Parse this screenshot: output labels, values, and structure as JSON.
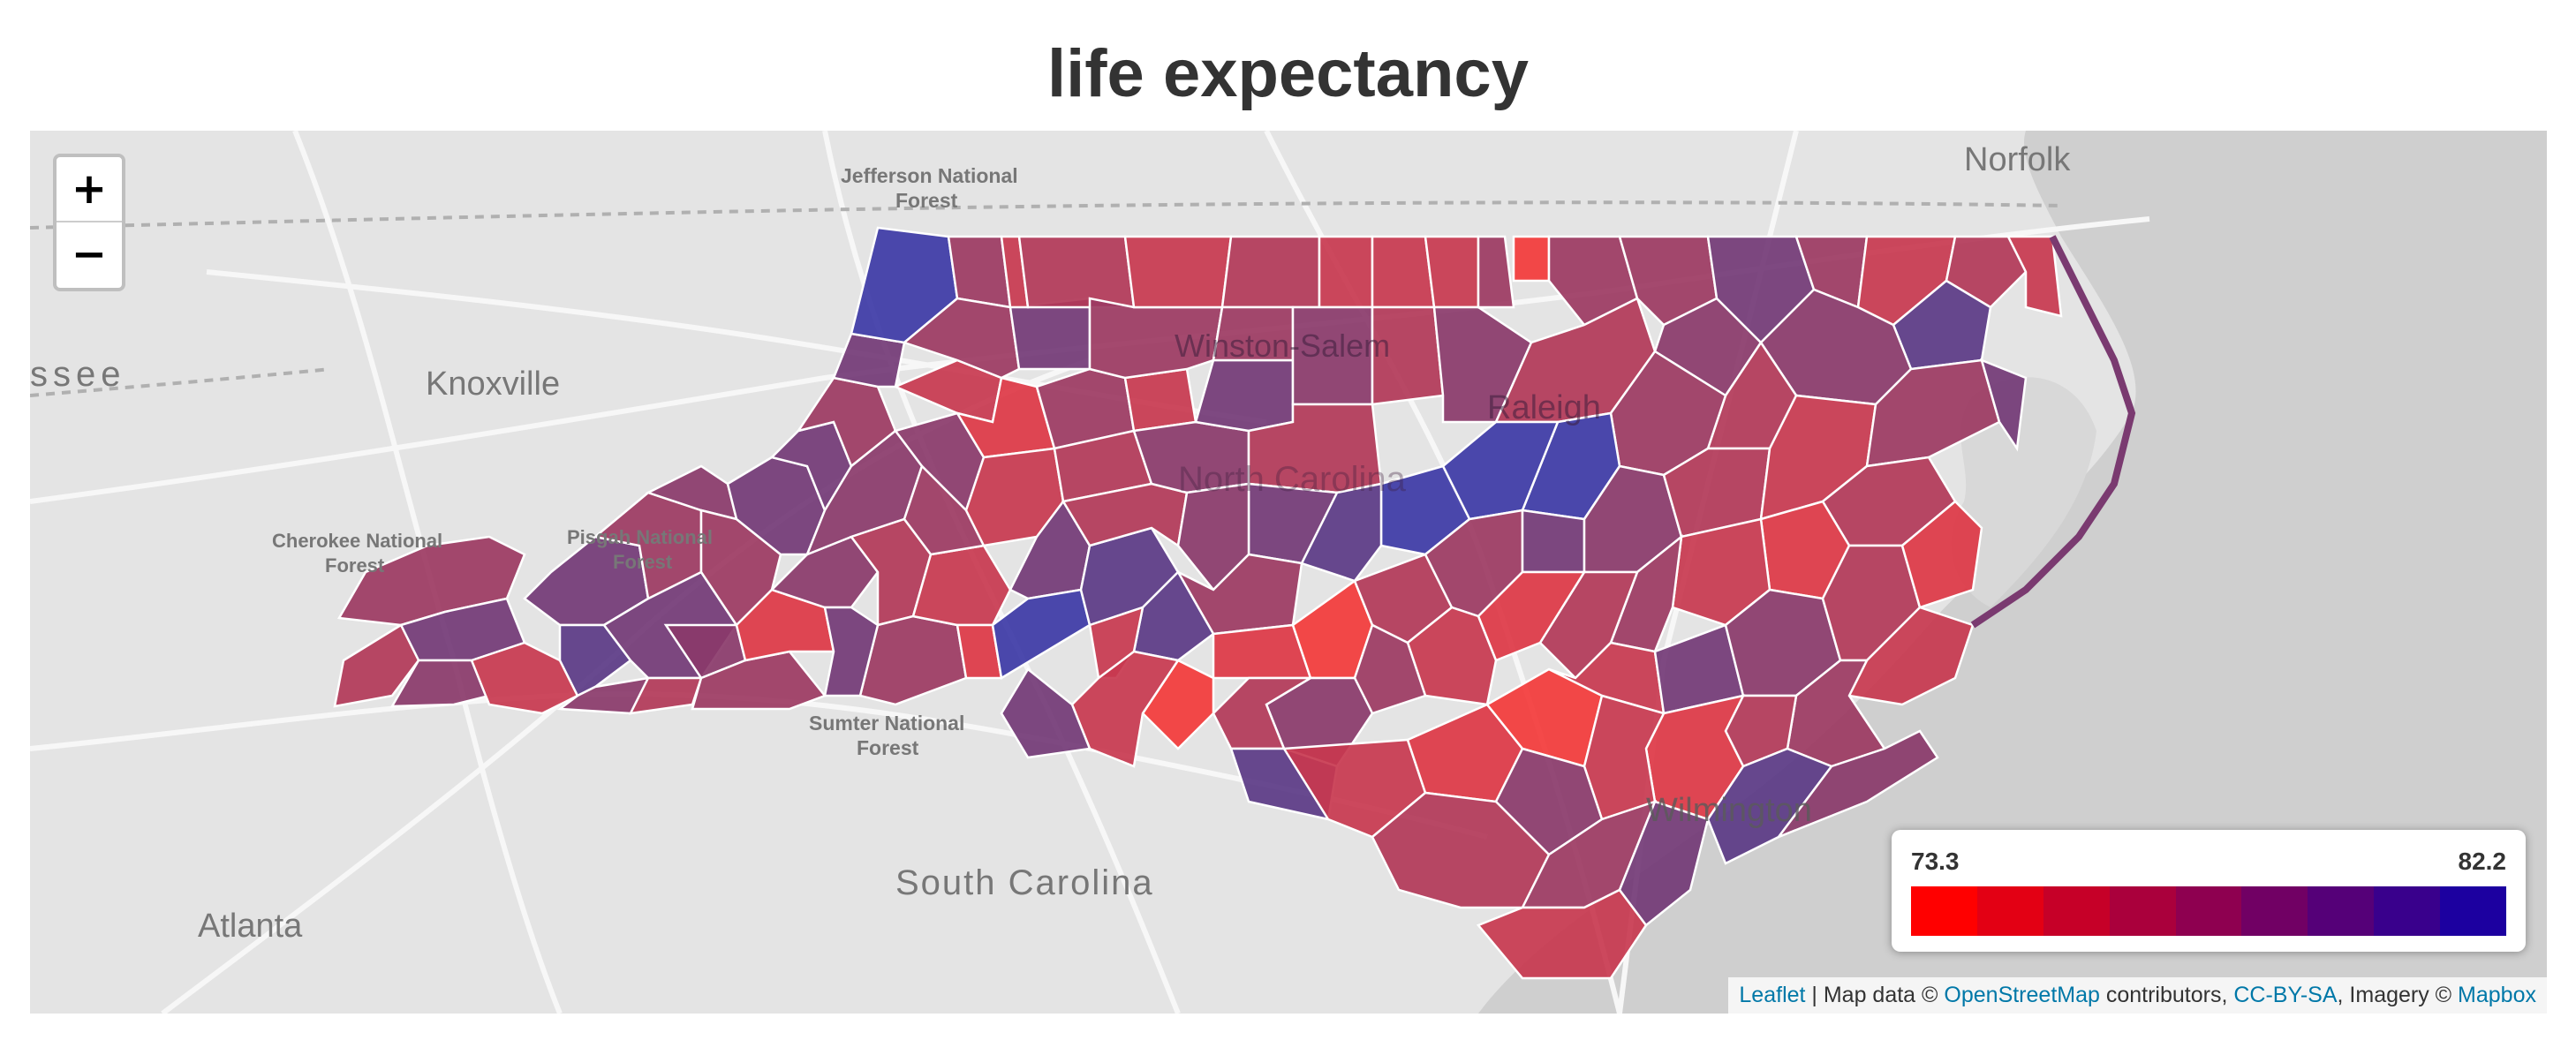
{
  "title": "life expectancy",
  "zoom": {
    "in_label": "+",
    "out_label": "−"
  },
  "legend": {
    "min": "73.3",
    "max": "82.2",
    "colors": [
      "#ff0000",
      "#e30014",
      "#c60028",
      "#aa003c",
      "#8e0050",
      "#710064",
      "#550078",
      "#39008c",
      "#1c00a0"
    ]
  },
  "attribution": {
    "leaflet": "Leaflet",
    "sep1": " | Map data © ",
    "osm": "OpenStreetMap",
    "contrib": " contributors, ",
    "license": "CC-BY-SA",
    "imagery": ", Imagery © ",
    "mapbox": "Mapbox"
  },
  "places": {
    "norfolk": "Norfolk",
    "jefferson": "Jefferson National",
    "jefferson2": "Forest",
    "winston": "Winston-Salem",
    "raleigh": "Raleigh",
    "knoxville": "Knoxville",
    "tennessee": "ssee",
    "cherokee": "Cherokee National",
    "cherokee2": "Forest",
    "pisgah": "Pisgah National",
    "pisgah2": "Forest",
    "north_carolina": "North Carolina",
    "sumter": "Sumter National",
    "sumter2": "Forest",
    "south_carolina": "South Carolina",
    "wilmington": "Wilmington",
    "atlanta": "Atlanta"
  },
  "map_colors": {
    "land": "#e4e4e4",
    "water": "#cfcfcf",
    "road": "#f7f7f7",
    "boundary": "#b0b0b0",
    "county_border": "#ffffff"
  }
}
